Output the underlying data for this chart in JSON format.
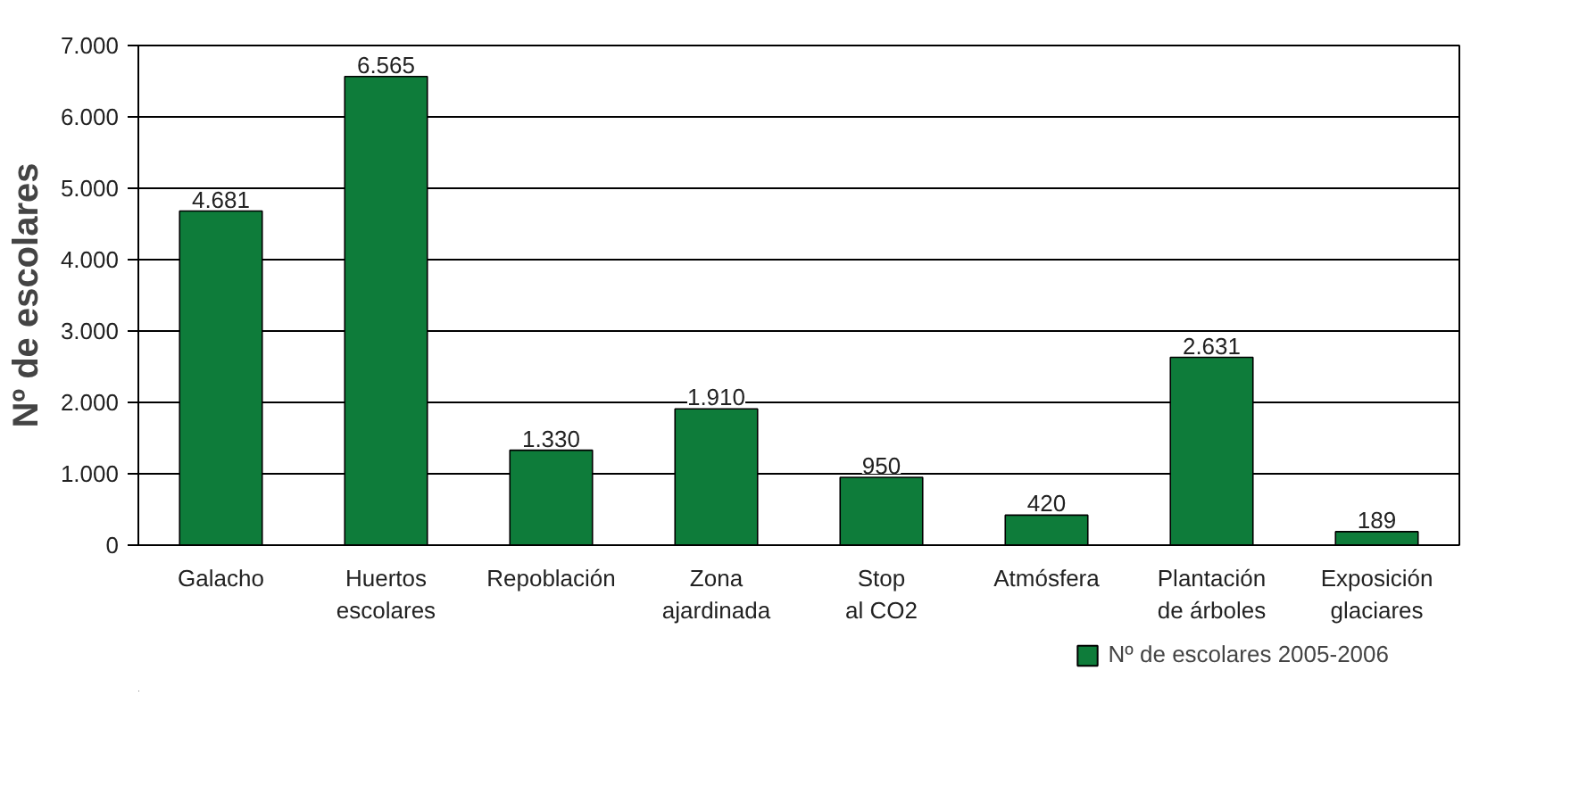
{
  "chart_data": {
    "type": "bar",
    "ylabel": "Nº de escolares",
    "categories": [
      "Galacho",
      "Huertos\nescolares",
      "Repoblación",
      "Zona\najardinada",
      "Stop\nal CO2",
      "Atmósfera",
      "Plantación\nde árboles",
      "Exposición\nglaciares"
    ],
    "series": [
      {
        "name": "Nº de escolares 2005-2006",
        "color": "#0e7c3a",
        "values": [
          4681,
          6565,
          1330,
          1910,
          950,
          420,
          2631,
          189
        ],
        "value_labels": [
          "4.681",
          "6.565",
          "1.330",
          "1.910",
          "950",
          "420",
          "2.631",
          "189"
        ]
      }
    ],
    "ylim": [
      0,
      7000
    ],
    "yticks": [
      {
        "value": 0,
        "label": "0"
      },
      {
        "value": 1000,
        "label": "1.000"
      },
      {
        "value": 2000,
        "label": "2.000"
      },
      {
        "value": 3000,
        "label": "3.000"
      },
      {
        "value": 4000,
        "label": "4.000"
      },
      {
        "value": 5000,
        "label": "5.000"
      },
      {
        "value": 6000,
        "label": "6.000"
      },
      {
        "value": 7000,
        "label": "7.000"
      }
    ],
    "grid": "y",
    "legend": "bottom right"
  }
}
